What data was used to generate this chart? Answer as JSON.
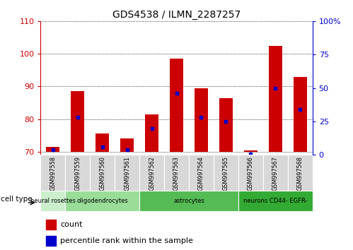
{
  "title": "GDS4538 / ILMN_2287257",
  "samples": [
    "GSM997558",
    "GSM997559",
    "GSM997560",
    "GSM997561",
    "GSM997562",
    "GSM997563",
    "GSM997564",
    "GSM997565",
    "GSM997566",
    "GSM997567",
    "GSM997568"
  ],
  "count_values": [
    71.5,
    88.5,
    75.5,
    74.0,
    81.5,
    98.5,
    89.5,
    86.5,
    70.5,
    102.5,
    93.0
  ],
  "percentile_values": [
    4,
    28,
    6,
    4,
    20,
    46,
    28,
    25,
    1,
    50,
    34
  ],
  "ylim_left": [
    69,
    110
  ],
  "ylim_right": [
    0,
    100
  ],
  "yticks_left": [
    70,
    80,
    90,
    100,
    110
  ],
  "yticks_right": [
    0,
    25,
    50,
    75,
    100
  ],
  "bar_bottom": 70,
  "bar_color": "#cc0000",
  "percentile_color": "#0000cc",
  "cell_groups": [
    {
      "label": "neural rosettes",
      "indices": [
        0
      ],
      "color": "#cceecc"
    },
    {
      "label": "oligodendrocytes",
      "indices": [
        1,
        2,
        3
      ],
      "color": "#99dd99"
    },
    {
      "label": "astrocytes",
      "indices": [
        4,
        5,
        6,
        7
      ],
      "color": "#55bb55"
    },
    {
      "label": "neurons CD44- EGFR-",
      "indices": [
        8,
        9,
        10
      ],
      "color": "#33aa33"
    }
  ],
  "tick_color_left": "#cc0000",
  "tick_color_right": "#0000cc",
  "spine_bottom_color": "#888888",
  "fig_width": 4.99,
  "fig_height": 3.54,
  "dpi": 100
}
